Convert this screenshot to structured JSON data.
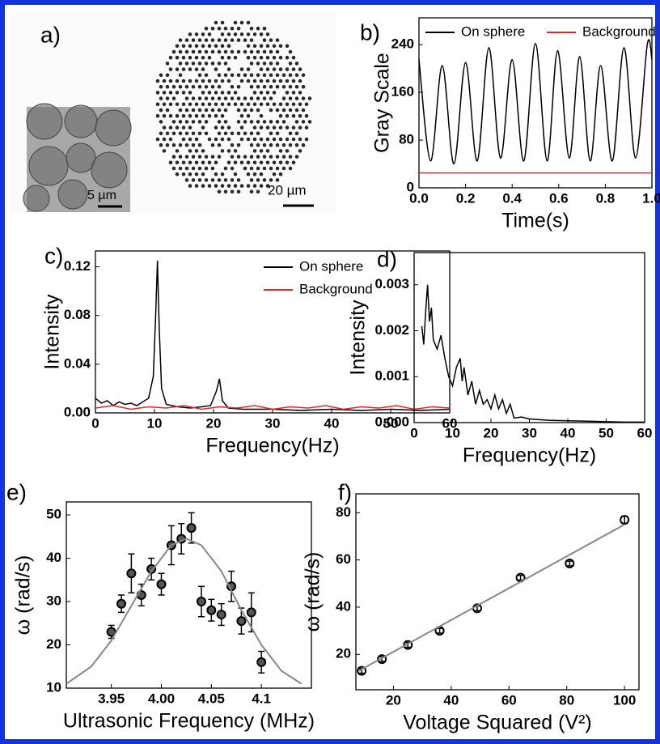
{
  "image_panel": {
    "panel_label": "a)",
    "scale_bars": [
      "5 µm",
      "20 µm"
    ]
  },
  "chart_data": [
    {
      "type": "line",
      "panel_label": "b)",
      "ylabel": "Gray Scale",
      "xlabel": "Time(s)",
      "xlim": [
        0,
        1
      ],
      "xticks": [
        {
          "value": 0,
          "label": "0.0"
        },
        0.2,
        0.4,
        0.6,
        0.8,
        {
          "value": 1,
          "label": "1.0"
        }
      ],
      "ylim": [
        0,
        285
      ],
      "yticks": [
        0,
        80,
        160,
        240
      ],
      "legend": "top",
      "series": [
        {
          "name": "On sphere",
          "color": "#000000",
          "x": [
            0,
            0.05,
            0.1,
            0.15,
            0.2,
            0.25,
            0.3,
            0.35,
            0.4,
            0.45,
            0.5,
            0.55,
            0.595,
            0.645,
            0.69,
            0.735,
            0.78,
            0.83,
            0.88,
            0.93,
            0.98,
            1.0
          ],
          "values": [
            215,
            45,
            205,
            40,
            210,
            45,
            235,
            50,
            215,
            45,
            242,
            45,
            230,
            50,
            220,
            45,
            205,
            45,
            235,
            50,
            240,
            215
          ]
        },
        {
          "name": "Background",
          "color": "#e8262a",
          "x": [
            0,
            1
          ],
          "values": [
            25,
            25
          ]
        }
      ]
    },
    {
      "type": "line",
      "panel_label": "c)",
      "ylabel": "Intensity",
      "xlabel": "Frequency(Hz)",
      "xlim": [
        0,
        60
      ],
      "xticks": [
        0,
        10,
        20,
        30,
        40,
        50,
        60
      ],
      "ylim": [
        0,
        0.133
      ],
      "yticks": [
        {
          "value": 0,
          "label": "0.00"
        },
        0.04,
        0.08,
        0.12
      ],
      "legend": "upper right",
      "series": [
        {
          "name": "On sphere",
          "color": "#000000",
          "x": [
            0,
            1,
            2,
            3,
            4,
            5,
            6,
            7,
            8,
            9,
            9.8,
            10.2,
            10.5,
            10.8,
            11.2,
            12,
            14,
            16,
            18,
            19.5,
            20.5,
            21,
            21.5,
            22.5,
            25,
            30,
            35,
            40,
            45,
            50,
            55,
            60
          ],
          "values": [
            0.012,
            0.008,
            0.01,
            0.006,
            0.009,
            0.007,
            0.008,
            0.006,
            0.009,
            0.012,
            0.03,
            0.08,
            0.125,
            0.07,
            0.02,
            0.007,
            0.005,
            0.004,
            0.005,
            0.006,
            0.018,
            0.028,
            0.01,
            0.004,
            0.003,
            0.003,
            0.002,
            0.003,
            0.002,
            0.003,
            0.002,
            0.003
          ]
        },
        {
          "name": "Background",
          "color": "#e8262a",
          "x": [
            0,
            3,
            6,
            9,
            12,
            15,
            18,
            21,
            24,
            27,
            30,
            33,
            36,
            39,
            42,
            45,
            48,
            51,
            54,
            57,
            60
          ],
          "values": [
            0.004,
            0.006,
            0.003,
            0.005,
            0.004,
            0.006,
            0.003,
            0.005,
            0.004,
            0.006,
            0.003,
            0.005,
            0.004,
            0.006,
            0.003,
            0.005,
            0.004,
            0.006,
            0.003,
            0.005,
            0.004
          ]
        }
      ]
    },
    {
      "type": "line",
      "panel_label": "d)",
      "ylabel": "Intensity",
      "xlabel": "Frequency(Hz)",
      "xlim": [
        0,
        60
      ],
      "xticks": [
        0,
        10,
        20,
        30,
        40,
        50,
        60
      ],
      "ylim": [
        0,
        0.0037
      ],
      "yticks": [
        {
          "value": 0,
          "label": "0.000"
        },
        0.001,
        0.002,
        0.003
      ],
      "series": [
        {
          "color": "#000000",
          "x": [
            2,
            2.5,
            3,
            3.5,
            4,
            4.5,
            5,
            6,
            7,
            8,
            9,
            10,
            11,
            12,
            12.5,
            13,
            14,
            15,
            16,
            17,
            18,
            19,
            20,
            21,
            22,
            23,
            24,
            25,
            26,
            28,
            30,
            35,
            40,
            45,
            50,
            55,
            60
          ],
          "values": [
            0.0021,
            0.0017,
            0.0024,
            0.003,
            0.0022,
            0.0025,
            0.0018,
            0.0016,
            0.0019,
            0.0014,
            0.001,
            0.0008,
            0.0012,
            0.0014,
            0.0009,
            0.0012,
            0.0006,
            0.0009,
            0.0004,
            0.0007,
            0.0004,
            0.0005,
            0.0003,
            0.0006,
            0.0003,
            0.0005,
            0.0002,
            0.0004,
            0.0001,
            0.00012,
            8e-05,
            5e-05,
            4e-05,
            3e-05,
            2e-05,
            1e-05,
            1e-05
          ]
        }
      ]
    },
    {
      "type": "scatter",
      "panel_label": "e)",
      "ylabel": "ω (rad/s)",
      "xlabel": "Ultrasonic Frequency (MHz)",
      "xlim": [
        3.905,
        4.15
      ],
      "xticks": [
        3.95,
        {
          "value": 4,
          "label": "4.00"
        },
        4.05,
        4.1
      ],
      "ylim": [
        10,
        53
      ],
      "yticks": [
        10,
        20,
        30,
        40,
        50
      ],
      "series": [
        {
          "color": "#000000",
          "mode": "markers",
          "x": [
            3.95,
            3.96,
            3.97,
            3.98,
            3.99,
            4.0,
            4.01,
            4.02,
            4.03,
            4.04,
            4.05,
            4.06,
            4.07,
            4.08,
            4.09,
            4.1
          ],
          "values": [
            23,
            29.5,
            36.5,
            31.5,
            37.5,
            34,
            43,
            44.5,
            47,
            30,
            28,
            27,
            33.5,
            25.5,
            27.5,
            16
          ],
          "errors": [
            1.5,
            2,
            4.5,
            2.5,
            2.5,
            2.5,
            4.5,
            3.5,
            3.5,
            3.5,
            2.5,
            2.5,
            3.5,
            3,
            4.5,
            2.5
          ]
        },
        {
          "color": "#888888",
          "mode": "line",
          "x": [
            3.905,
            3.93,
            3.95,
            3.97,
            3.99,
            4.01,
            4.025,
            4.04,
            4.06,
            4.08,
            4.1,
            4.12,
            4.14
          ],
          "values": [
            11,
            15,
            21,
            29,
            37,
            43,
            44.5,
            43,
            37,
            28,
            20,
            14,
            11
          ]
        }
      ]
    },
    {
      "type": "scatter",
      "panel_label": "f)",
      "ylabel": "ω (rad/s)",
      "xlabel": "Voltage Squared (V²)",
      "xlim": [
        7,
        105
      ],
      "xticks": [
        20,
        40,
        60,
        80,
        100
      ],
      "ylim": [
        5,
        88
      ],
      "yticks": [
        20,
        40,
        60,
        80
      ],
      "series": [
        {
          "color": "#000000",
          "mode": "markers",
          "x": [
            9,
            16,
            25,
            36,
            49,
            64,
            81,
            100
          ],
          "values": [
            13,
            18,
            24,
            30,
            39.5,
            52.5,
            58.5,
            77
          ],
          "errors": [
            1,
            1,
            1,
            1,
            1,
            1,
            1,
            1.5
          ]
        },
        {
          "color": "#888888",
          "mode": "line",
          "x": [
            8,
            100
          ],
          "values": [
            13,
            75
          ]
        }
      ]
    }
  ]
}
